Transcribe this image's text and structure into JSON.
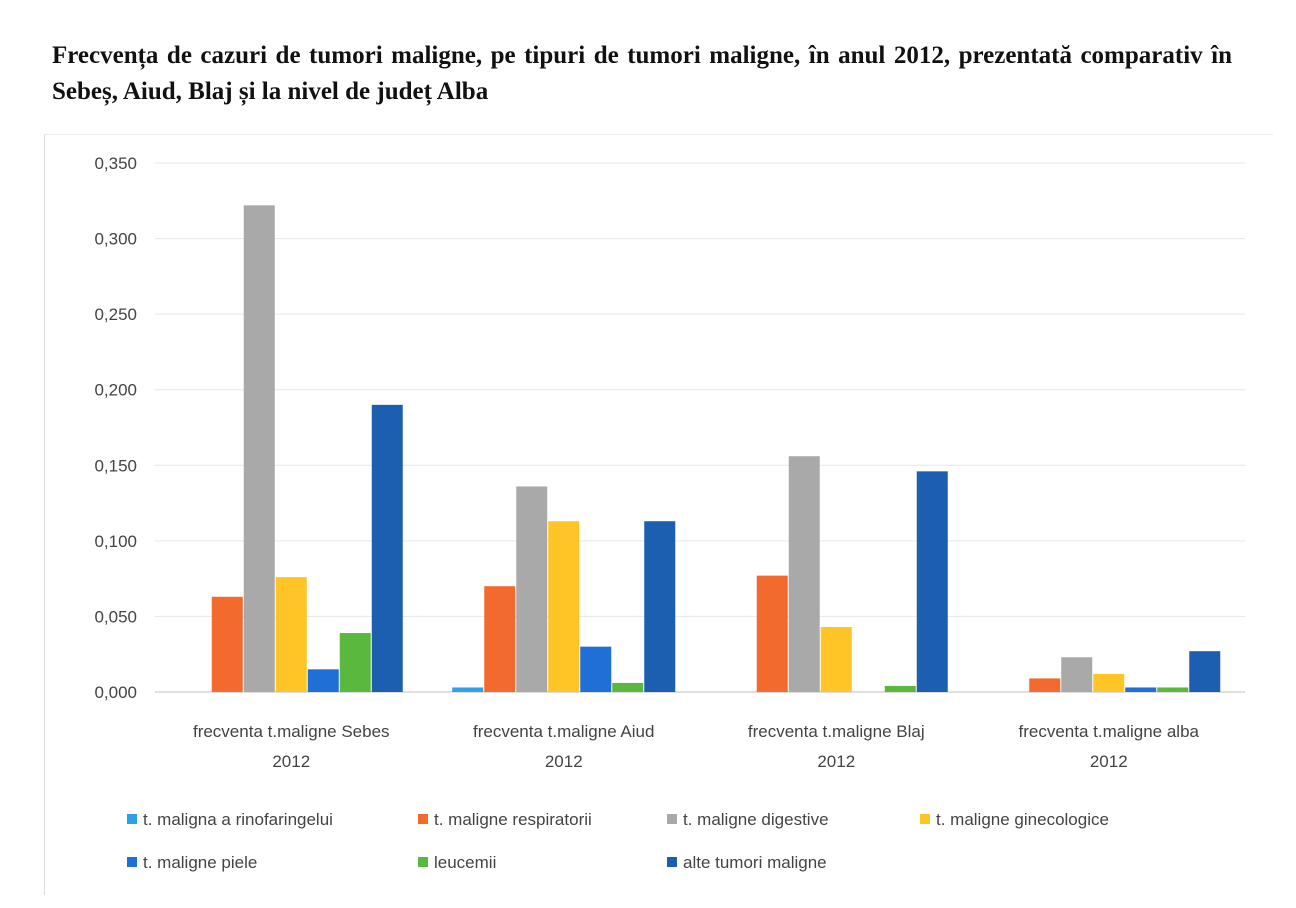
{
  "title": "Frecvența de cazuri de tumori maligne, pe tipuri de tumori maligne, în anul 2012, prezentată comparativ în Sebeș, Aiud, Blaj și la nivel de județ Alba",
  "chart_data": {
    "type": "bar",
    "title": "",
    "xlabel": "",
    "ylabel": "",
    "ylim": [
      0,
      0.35
    ],
    "yticks": [
      "0,000",
      "0,050",
      "0,100",
      "0,150",
      "0,200",
      "0,250",
      "0,300",
      "0,350"
    ],
    "grid": true,
    "legend_position": "bottom",
    "categories": [
      [
        "frecventa t.maligne Sebes",
        "2012"
      ],
      [
        "frecventa t.maligne Aiud",
        "2012"
      ],
      [
        "frecventa t.maligne Blaj",
        "2012"
      ],
      [
        "frecventa t.maligne alba",
        "2012"
      ]
    ],
    "series": [
      {
        "name": "t. maligna a rinofaringelui",
        "color": "#2f9fe6",
        "values": [
          0.0,
          0.003,
          0.0,
          0.0
        ]
      },
      {
        "name": "t. maligne respiratorii",
        "color": "#f26a2e",
        "values": [
          0.063,
          0.07,
          0.077,
          0.009
        ]
      },
      {
        "name": "t. maligne digestive",
        "color": "#a9a9a9",
        "values": [
          0.322,
          0.136,
          0.156,
          0.023
        ]
      },
      {
        "name": "t. maligne ginecologice",
        "color": "#ffc425",
        "values": [
          0.076,
          0.113,
          0.043,
          0.012
        ]
      },
      {
        "name": "t. maligne piele",
        "color": "#1f6fd6",
        "values": [
          0.015,
          0.03,
          0.0,
          0.003
        ]
      },
      {
        "name": "leucemii",
        "color": "#5ab83f",
        "values": [
          0.039,
          0.006,
          0.004,
          0.003
        ]
      },
      {
        "name": "alte tumori maligne",
        "color": "#1c5fb0",
        "values": [
          0.19,
          0.113,
          0.146,
          0.027
        ]
      }
    ]
  }
}
